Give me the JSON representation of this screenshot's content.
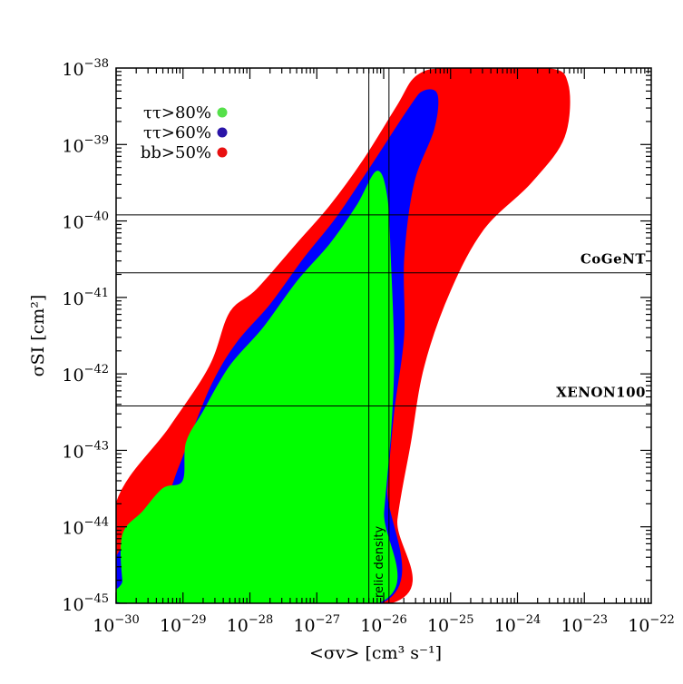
{
  "chart_data": {
    "type": "area",
    "xlabel": "<σv> [cm³ s⁻¹]",
    "ylabel": "σSI [cm²]",
    "xscale": "log",
    "yscale": "log",
    "xlim": [
      1e-30,
      1e-22
    ],
    "ylim": [
      1e-45,
      1e-38
    ],
    "x_ticks": [
      {
        "base": "10",
        "exp": "−30",
        "value": 1e-30
      },
      {
        "base": "10",
        "exp": "−29",
        "value": 1e-29
      },
      {
        "base": "10",
        "exp": "−28",
        "value": 1e-28
      },
      {
        "base": "10",
        "exp": "−27",
        "value": 1e-27
      },
      {
        "base": "10",
        "exp": "−26",
        "value": 1e-26
      },
      {
        "base": "10",
        "exp": "−25",
        "value": 1e-25
      },
      {
        "base": "10",
        "exp": "−24",
        "value": 1e-24
      },
      {
        "base": "10",
        "exp": "−23",
        "value": 1e-23
      },
      {
        "base": "10",
        "exp": "−22",
        "value": 1e-22
      }
    ],
    "y_ticks": [
      {
        "base": "10",
        "exp": "−38",
        "value": 1e-38
      },
      {
        "base": "10",
        "exp": "−39",
        "value": 1e-39
      },
      {
        "base": "10",
        "exp": "−40",
        "value": 1e-40
      },
      {
        "base": "10",
        "exp": "−41",
        "value": 1e-41
      },
      {
        "base": "10",
        "exp": "−42",
        "value": 1e-42
      },
      {
        "base": "10",
        "exp": "−43",
        "value": 1e-43
      },
      {
        "base": "10",
        "exp": "−44",
        "value": 1e-44
      },
      {
        "base": "10",
        "exp": "−45",
        "value": 1e-45
      }
    ],
    "legend": {
      "placement": "top-left",
      "entries": [
        {
          "label": "ττ>80%",
          "color": "#55e04a"
        },
        {
          "label": "ττ>60%",
          "color": "#2a14a8"
        },
        {
          "label": "bb>50%",
          "color": "#e81010"
        }
      ]
    },
    "regions": [
      {
        "name": "bb>50%",
        "color": "#ff0000",
        "points": [
          [
            -30,
            -43.7
          ],
          [
            -29.2,
            -42.7
          ],
          [
            -28.6,
            -41.9
          ],
          [
            -28.3,
            -41.2
          ],
          [
            -27.9,
            -40.9
          ],
          [
            -27.3,
            -40.3
          ],
          [
            -26.8,
            -39.8
          ],
          [
            -26.3,
            -39.2
          ],
          [
            -25.8,
            -38.5
          ],
          [
            -25.5,
            -38.1
          ],
          [
            -25,
            -38
          ],
          [
            -23.6,
            -38
          ],
          [
            -23.25,
            -38.2
          ],
          [
            -23.3,
            -38.9
          ],
          [
            -23.8,
            -39.5
          ],
          [
            -24.5,
            -40.1
          ],
          [
            -25,
            -40.9
          ],
          [
            -25.4,
            -41.9
          ],
          [
            -25.6,
            -42.9
          ],
          [
            -25.8,
            -43.9
          ],
          [
            -25.9,
            -45
          ],
          [
            -30,
            -45
          ]
        ]
      },
      {
        "name": "ττ>60%",
        "color": "#0000ff",
        "points": [
          [
            -30,
            -44.4
          ],
          [
            -29.3,
            -43.7
          ],
          [
            -29.05,
            -43.2
          ],
          [
            -28.6,
            -42.2
          ],
          [
            -28.2,
            -41.6
          ],
          [
            -27.7,
            -41.1
          ],
          [
            -27.2,
            -40.5
          ],
          [
            -26.7,
            -39.95
          ],
          [
            -26.2,
            -39.3
          ],
          [
            -25.6,
            -38.5
          ],
          [
            -25.4,
            -38.3
          ],
          [
            -25.2,
            -38.35
          ],
          [
            -25.25,
            -38.8
          ],
          [
            -25.55,
            -39.5
          ],
          [
            -25.7,
            -40.5
          ],
          [
            -25.7,
            -41.5
          ],
          [
            -25.85,
            -42.5
          ],
          [
            -25.95,
            -43.5
          ],
          [
            -26.05,
            -45
          ],
          [
            -30,
            -45
          ]
        ]
      },
      {
        "name": "ττ>80%",
        "color": "#00ff00",
        "points": [
          [
            -29.8,
            -45
          ],
          [
            -29.9,
            -44.7
          ],
          [
            -29.9,
            -44.1
          ],
          [
            -29.6,
            -43.8
          ],
          [
            -29.3,
            -43.5
          ],
          [
            -29.0,
            -43.4
          ],
          [
            -28.95,
            -42.9
          ],
          [
            -28.7,
            -42.5
          ],
          [
            -28.3,
            -41.9
          ],
          [
            -27.8,
            -41.4
          ],
          [
            -27.3,
            -40.8
          ],
          [
            -26.8,
            -40.3
          ],
          [
            -26.4,
            -39.8
          ],
          [
            -26.1,
            -39.35
          ],
          [
            -25.95,
            -39.7
          ],
          [
            -25.9,
            -40.5
          ],
          [
            -25.85,
            -41.8
          ],
          [
            -25.9,
            -42.8
          ],
          [
            -26.0,
            -43.8
          ],
          [
            -26.1,
            -45
          ]
        ]
      }
    ],
    "hlines": [
      {
        "y": 1.2e-40,
        "label": ""
      },
      {
        "y": 2.1e-41,
        "label": "CoGeNT"
      },
      {
        "y": 3.8e-43,
        "label": "XENON100"
      }
    ],
    "vlines": [
      {
        "x": 6e-27
      },
      {
        "x": 1.2e-26,
        "label": "relic density"
      }
    ]
  }
}
